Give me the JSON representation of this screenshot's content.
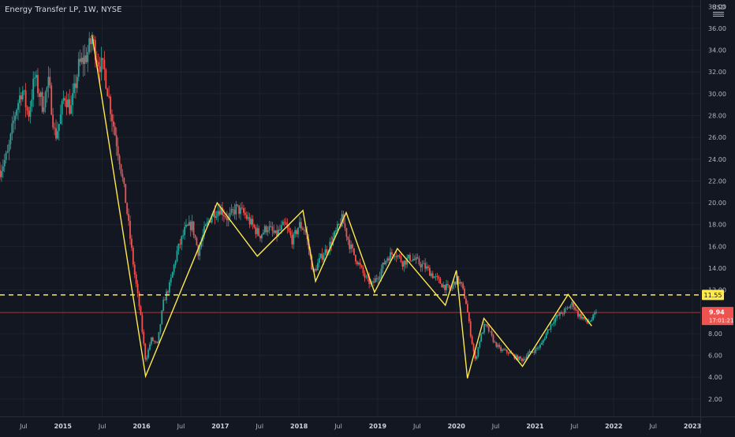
{
  "header": {
    "title": "Energy Transfer LP, 1W, NYSE",
    "currency": "USD"
  },
  "colors": {
    "background": "#131722",
    "grid": "#1e222d",
    "up": "#26a69a",
    "down": "#ef5350",
    "zigzag": "#ffe94d",
    "support": "#ffe94d",
    "price_line": "#ef5350",
    "text": "#b2b5be"
  },
  "icons": {
    "settings": "scale-settings-icon"
  },
  "chart_data": {
    "type": "candlestick",
    "title": "Energy Transfer LP, 1W, NYSE",
    "ylabel": "USD",
    "ylim": [
      0.4,
      38.6
    ],
    "y_ticks": [
      "2.00",
      "4.00",
      "6.00",
      "8.00",
      "10.00",
      "12.00",
      "14.00",
      "16.00",
      "18.00",
      "20.00",
      "22.00",
      "24.00",
      "26.00",
      "28.00",
      "30.00",
      "32.00",
      "34.00",
      "36.00",
      "38.00"
    ],
    "x_ticks": [
      {
        "t": 2014.5,
        "label": "Jul"
      },
      {
        "t": 2015.0,
        "label": "2015"
      },
      {
        "t": 2015.5,
        "label": "Jul"
      },
      {
        "t": 2016.0,
        "label": "2016"
      },
      {
        "t": 2016.5,
        "label": "Jul"
      },
      {
        "t": 2017.0,
        "label": "2017"
      },
      {
        "t": 2017.5,
        "label": "Jul"
      },
      {
        "t": 2018.0,
        "label": "2018"
      },
      {
        "t": 2018.5,
        "label": "Jul"
      },
      {
        "t": 2019.0,
        "label": "2019"
      },
      {
        "t": 2019.5,
        "label": "Jul"
      },
      {
        "t": 2020.0,
        "label": "2020"
      },
      {
        "t": 2020.5,
        "label": "Jul"
      },
      {
        "t": 2021.0,
        "label": "2021"
      },
      {
        "t": 2021.5,
        "label": "Jul"
      },
      {
        "t": 2022.0,
        "label": "2022"
      },
      {
        "t": 2022.5,
        "label": "Jul"
      },
      {
        "t": 2023.0,
        "label": "2023"
      }
    ],
    "xlim": [
      2014.2,
      2023.1
    ],
    "price_path": [
      [
        2014.2,
        23.0
      ],
      [
        2014.3,
        24.5
      ],
      [
        2014.4,
        28.5
      ],
      [
        2014.48,
        30.5
      ],
      [
        2014.56,
        28.0
      ],
      [
        2014.64,
        31.5
      ],
      [
        2014.74,
        29.0
      ],
      [
        2014.82,
        31.0
      ],
      [
        2014.9,
        26.0
      ],
      [
        2014.96,
        27.5
      ],
      [
        2015.02,
        30.0
      ],
      [
        2015.1,
        28.5
      ],
      [
        2015.2,
        32.5
      ],
      [
        2015.3,
        33.5
      ],
      [
        2015.37,
        35.0
      ],
      [
        2015.45,
        33.0
      ],
      [
        2015.53,
        32.0
      ],
      [
        2015.62,
        28.0
      ],
      [
        2015.72,
        24.0
      ],
      [
        2015.8,
        20.0
      ],
      [
        2015.9,
        14.0
      ],
      [
        2015.98,
        10.0
      ],
      [
        2016.05,
        5.5
      ],
      [
        2016.12,
        7.5
      ],
      [
        2016.2,
        7.0
      ],
      [
        2016.28,
        11.0
      ],
      [
        2016.36,
        12.5
      ],
      [
        2016.45,
        15.5
      ],
      [
        2016.55,
        17.5
      ],
      [
        2016.64,
        18.0
      ],
      [
        2016.72,
        15.5
      ],
      [
        2016.8,
        17.5
      ],
      [
        2016.9,
        19.0
      ],
      [
        2017.0,
        19.5
      ],
      [
        2017.1,
        18.5
      ],
      [
        2017.2,
        19.5
      ],
      [
        2017.3,
        19.0
      ],
      [
        2017.4,
        18.0
      ],
      [
        2017.5,
        17.0
      ],
      [
        2017.6,
        17.8
      ],
      [
        2017.7,
        17.0
      ],
      [
        2017.82,
        18.0
      ],
      [
        2017.92,
        16.5
      ],
      [
        2018.0,
        18.0
      ],
      [
        2018.08,
        17.5
      ],
      [
        2018.18,
        13.5
      ],
      [
        2018.28,
        15.0
      ],
      [
        2018.38,
        16.0
      ],
      [
        2018.45,
        17.0
      ],
      [
        2018.55,
        18.5
      ],
      [
        2018.65,
        16.0
      ],
      [
        2018.75,
        14.5
      ],
      [
        2018.85,
        13.0
      ],
      [
        2018.93,
        12.5
      ],
      [
        2019.02,
        13.5
      ],
      [
        2019.12,
        15.0
      ],
      [
        2019.22,
        15.5
      ],
      [
        2019.32,
        14.5
      ],
      [
        2019.42,
        15.0
      ],
      [
        2019.52,
        14.5
      ],
      [
        2019.62,
        14.0
      ],
      [
        2019.72,
        13.2
      ],
      [
        2019.82,
        12.5
      ],
      [
        2019.92,
        12.0
      ],
      [
        2020.0,
        13.0
      ],
      [
        2020.06,
        12.5
      ],
      [
        2020.12,
        11.0
      ],
      [
        2020.18,
        8.0
      ],
      [
        2020.24,
        5.5
      ],
      [
        2020.3,
        7.5
      ],
      [
        2020.36,
        8.8
      ],
      [
        2020.42,
        8.2
      ],
      [
        2020.48,
        7.2
      ],
      [
        2020.56,
        6.5
      ],
      [
        2020.66,
        6.3
      ],
      [
        2020.76,
        5.8
      ],
      [
        2020.84,
        5.6
      ],
      [
        2020.92,
        6.2
      ],
      [
        2021.0,
        6.5
      ],
      [
        2021.08,
        7.0
      ],
      [
        2021.16,
        8.3
      ],
      [
        2021.24,
        9.3
      ],
      [
        2021.32,
        9.8
      ],
      [
        2021.4,
        10.2
      ],
      [
        2021.48,
        10.8
      ],
      [
        2021.54,
        9.8
      ],
      [
        2021.6,
        9.5
      ],
      [
        2021.66,
        9.0
      ],
      [
        2021.72,
        9.3
      ],
      [
        2021.78,
        9.94
      ]
    ],
    "zigzag": [
      [
        2015.37,
        35.4
      ],
      [
        2016.05,
        4.1
      ],
      [
        2016.96,
        20.0
      ],
      [
        2017.47,
        15.1
      ],
      [
        2018.05,
        19.3
      ],
      [
        2018.21,
        12.8
      ],
      [
        2018.6,
        19.1
      ],
      [
        2018.96,
        11.8
      ],
      [
        2019.25,
        15.8
      ],
      [
        2019.86,
        10.6
      ],
      [
        2020.0,
        13.8
      ],
      [
        2020.14,
        3.9
      ],
      [
        2020.35,
        9.4
      ],
      [
        2020.84,
        5.0
      ],
      [
        2021.42,
        11.6
      ],
      [
        2021.72,
        8.7
      ]
    ],
    "support_level": 11.55,
    "support_label": "11.55",
    "last_price": 9.94,
    "last_price_label": "9.94",
    "countdown_label": "17:01:21"
  }
}
